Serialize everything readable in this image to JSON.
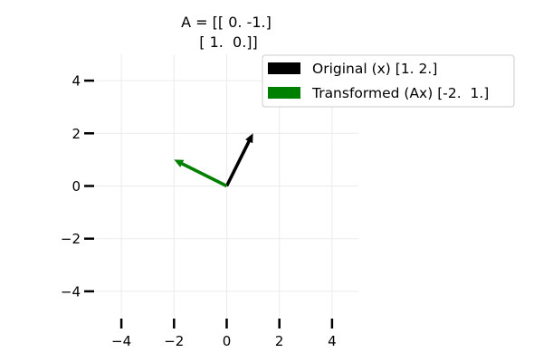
{
  "chart_data": {
    "type": "quiver",
    "title": [
      "A = [[ 0. -1.]",
      " [ 1.  0.]]"
    ],
    "xlabel": "",
    "ylabel": "",
    "xlim": [
      -5,
      5
    ],
    "ylim": [
      -5,
      5
    ],
    "grid": true,
    "aspect": "equal",
    "xticks": [
      -4,
      -2,
      0,
      2,
      4
    ],
    "yticks": [
      -4,
      -2,
      0,
      2,
      4
    ],
    "tick_labels": {
      "x": [
        "−4",
        "−2",
        "0",
        "2",
        "4"
      ],
      "y": [
        "−4",
        "−2",
        "0",
        "2",
        "4"
      ]
    },
    "legend_position": "upper right",
    "series": [
      {
        "name": "Original (x) [1. 2.]",
        "origin": [
          0,
          0
        ],
        "vector": [
          1,
          2
        ],
        "color": "#000000"
      },
      {
        "name": "Transformed (Ax) [-2.  1.]",
        "origin": [
          0,
          0
        ],
        "vector": [
          -2,
          1
        ],
        "color": "#008000"
      }
    ]
  }
}
